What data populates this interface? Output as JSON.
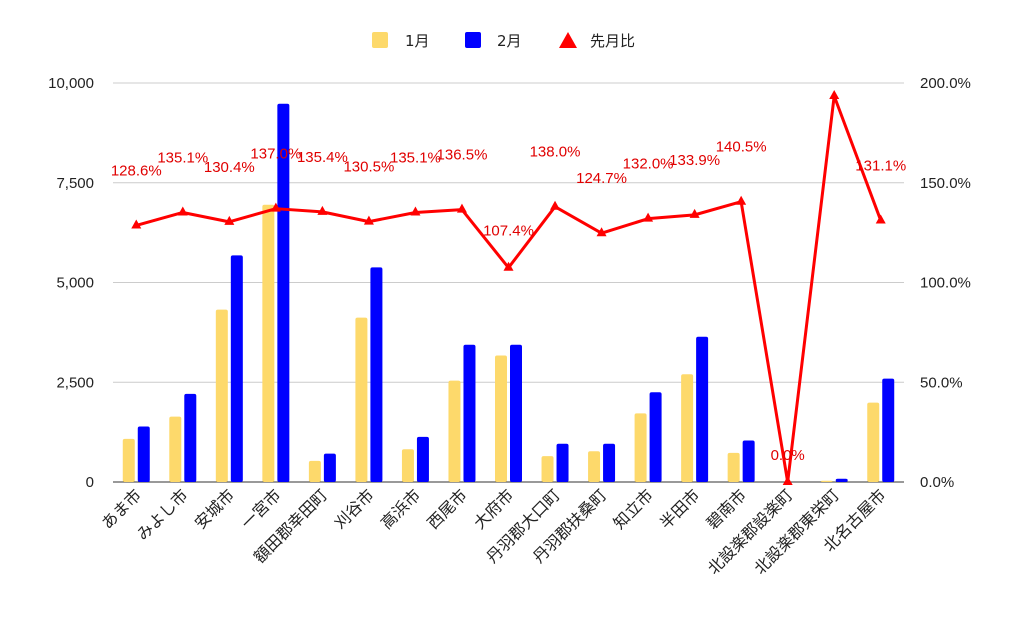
{
  "chart_data": {
    "type": "bar",
    "categories": [
      "あま市",
      "みよし市",
      "安城市",
      "一宮市",
      "額田郡幸田町",
      "刈谷市",
      "高浜市",
      "西尾市",
      "大府市",
      "丹羽郡大口町",
      "丹羽郡扶桑町",
      "知立市",
      "半田市",
      "碧南市",
      "北設楽郡設楽町",
      "北設楽郡東栄町",
      "北名古屋市"
    ],
    "series": [
      {
        "name": "1月",
        "kind": "bar",
        "axis": "left",
        "color": "#fdd96b",
        "values": [
          1080,
          1640,
          4320,
          6950,
          530,
          4120,
          820,
          2540,
          3170,
          650,
          770,
          1720,
          2700,
          730,
          0,
          30,
          1990
        ]
      },
      {
        "name": "2月",
        "kind": "bar",
        "axis": "left",
        "color": "#0000ff",
        "values": [
          1390,
          2210,
          5680,
          9480,
          710,
          5380,
          1130,
          3440,
          3440,
          960,
          960,
          2250,
          3640,
          1040,
          0,
          80,
          2590
        ]
      },
      {
        "name": "先月比",
        "kind": "line",
        "axis": "right",
        "color": "#ff0000",
        "values": [
          128.6,
          135.1,
          130.4,
          137.0,
          135.4,
          130.5,
          135.1,
          136.5,
          107.4,
          138.0,
          124.7,
          132.0,
          133.9,
          140.5,
          0.0,
          193.5,
          131.1
        ],
        "labels": [
          "128.6%",
          "135.1%",
          "130.4%",
          "137.0%",
          "135.4%",
          "130.5%",
          "135.1%",
          "136.5%",
          "107.4%",
          "138.0%",
          "124.7%",
          "132.0%",
          "133.9%",
          "140.5%",
          "0.0%",
          "",
          "131.1%"
        ]
      }
    ],
    "y_left": {
      "range": [
        0,
        10000
      ],
      "ticks": [
        "0",
        "2,500",
        "5,000",
        "7,500",
        "10,000"
      ]
    },
    "y_right": {
      "range": [
        0,
        200
      ],
      "ticks": [
        "0.0%",
        "50.0%",
        "100.0%",
        "150.0%",
        "200.0%"
      ]
    },
    "legend": {
      "position": "top",
      "entries": [
        "1月",
        "2月",
        "先月比"
      ]
    },
    "grid": true
  }
}
